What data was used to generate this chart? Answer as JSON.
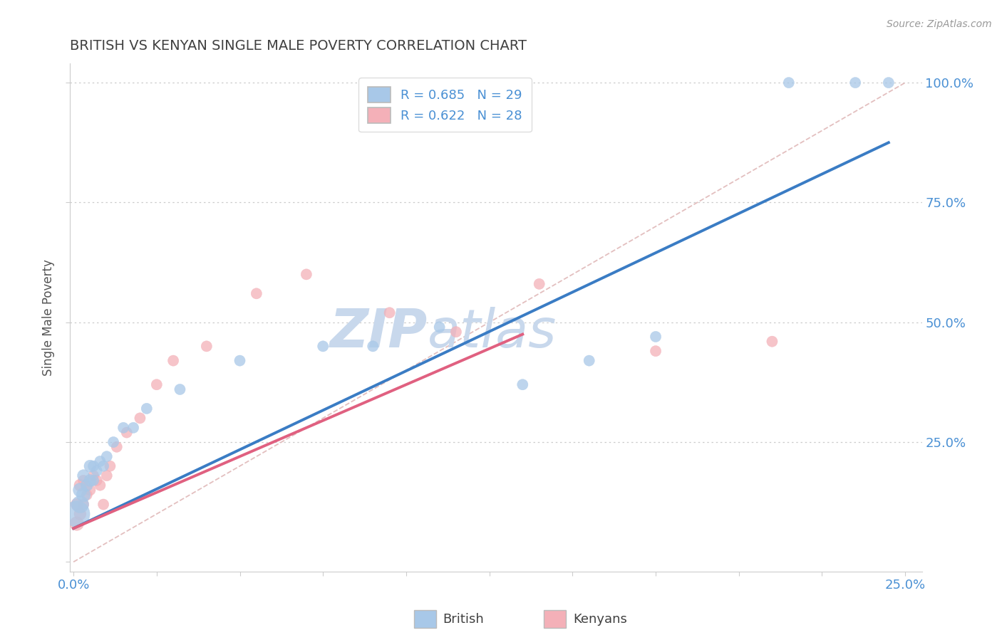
{
  "title": "BRITISH VS KENYAN SINGLE MALE POVERTY CORRELATION CHART",
  "source": "Source: ZipAtlas.com",
  "ylabel": "Single Male Poverty",
  "legend_british": "British",
  "legend_kenyans": "Kenyans",
  "R_british": 0.685,
  "N_british": 29,
  "R_kenyan": 0.622,
  "N_kenyan": 28,
  "xlim": [
    -0.001,
    0.255
  ],
  "ylim": [
    -0.02,
    1.04
  ],
  "blue_color": "#A8C8E8",
  "pink_color": "#F4B0B8",
  "blue_line_color": "#3A7CC4",
  "pink_line_color": "#E06080",
  "ref_line_color": "#E0B8B8",
  "title_color": "#404040",
  "axis_label_color": "#555555",
  "tick_label_color": "#4A90D4",
  "grid_color": "#CCCCCC",
  "watermark_color": "#C8D8EC",
  "british_x": [
    0.001,
    0.002,
    0.002,
    0.003,
    0.003,
    0.004,
    0.005,
    0.005,
    0.006,
    0.006,
    0.007,
    0.008,
    0.009,
    0.01,
    0.012,
    0.015,
    0.018,
    0.022,
    0.032,
    0.05,
    0.075,
    0.09,
    0.11,
    0.135,
    0.155,
    0.175,
    0.215,
    0.235,
    0.245
  ],
  "british_y": [
    0.1,
    0.12,
    0.15,
    0.14,
    0.18,
    0.16,
    0.17,
    0.2,
    0.17,
    0.2,
    0.19,
    0.21,
    0.2,
    0.22,
    0.25,
    0.28,
    0.28,
    0.32,
    0.36,
    0.42,
    0.45,
    0.45,
    0.49,
    0.37,
    0.42,
    0.47,
    1.0,
    1.0,
    1.0
  ],
  "british_sizes": [
    700,
    300,
    200,
    200,
    150,
    150,
    150,
    150,
    120,
    120,
    120,
    120,
    120,
    120,
    120,
    120,
    120,
    120,
    120,
    120,
    120,
    120,
    120,
    120,
    120,
    120,
    120,
    120,
    120
  ],
  "kenyan_x": [
    0.001,
    0.001,
    0.002,
    0.002,
    0.003,
    0.003,
    0.004,
    0.004,
    0.005,
    0.006,
    0.007,
    0.008,
    0.009,
    0.01,
    0.011,
    0.013,
    0.016,
    0.02,
    0.025,
    0.03,
    0.04,
    0.055,
    0.07,
    0.095,
    0.115,
    0.14,
    0.175,
    0.21
  ],
  "kenyan_y": [
    0.08,
    0.12,
    0.1,
    0.16,
    0.12,
    0.17,
    0.14,
    0.16,
    0.15,
    0.18,
    0.17,
    0.16,
    0.12,
    0.18,
    0.2,
    0.24,
    0.27,
    0.3,
    0.37,
    0.42,
    0.45,
    0.56,
    0.6,
    0.52,
    0.48,
    0.58,
    0.44,
    0.46
  ],
  "kenyan_sizes": [
    200,
    150,
    150,
    150,
    120,
    120,
    120,
    120,
    120,
    120,
    120,
    120,
    120,
    120,
    120,
    120,
    120,
    120,
    120,
    120,
    120,
    120,
    120,
    120,
    120,
    120,
    120,
    120
  ],
  "blue_line_x": [
    0.0,
    0.245
  ],
  "blue_line_y": [
    0.07,
    0.875
  ],
  "pink_line_x": [
    0.0,
    0.135
  ],
  "pink_line_y": [
    0.07,
    0.475
  ],
  "ref_line_x": [
    0.0,
    0.25
  ],
  "ref_line_y": [
    0.0,
    1.0
  ]
}
